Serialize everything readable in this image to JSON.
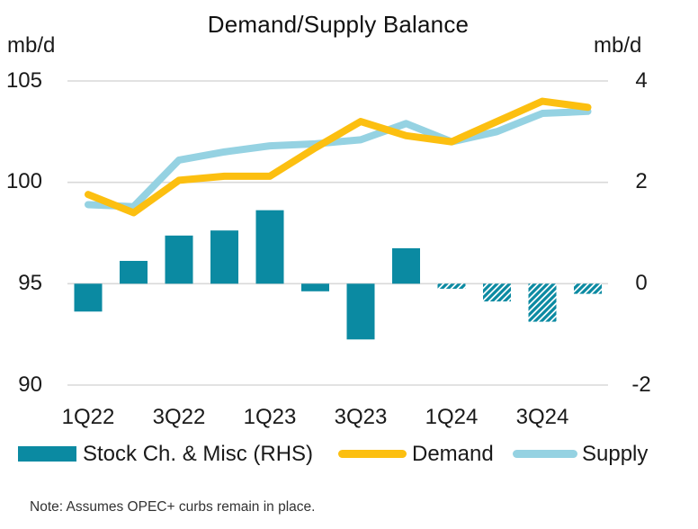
{
  "title": "Demand/Supply Balance",
  "left_axis": {
    "unit": "mb/d",
    "tick_labels": [
      "105",
      "100",
      "95",
      "90"
    ]
  },
  "right_axis": {
    "unit": "mb/d",
    "tick_labels": [
      "4",
      "2",
      "0",
      "-2"
    ]
  },
  "legend": {
    "stock": {
      "label": "Stock Ch. & Misc (RHS)",
      "color": "#0b8aa2"
    },
    "demand": {
      "label": "Demand",
      "color": "#fcbf10"
    },
    "supply": {
      "label": "Supply",
      "color": "#95d2e2"
    }
  },
  "note": "Note: Assumes OPEC+ curbs remain in place.",
  "colors": {
    "gridline": "#d9d9d9",
    "background": "#ffffff",
    "text": "#1a1a1a"
  },
  "chart_data": {
    "type": "combo",
    "x": [
      "1Q22",
      "2Q22",
      "3Q22",
      "4Q22",
      "1Q23",
      "2Q23",
      "3Q23",
      "4Q23",
      "1Q24",
      "2Q24",
      "3Q24",
      "4Q24"
    ],
    "x_tick_labels": [
      "1Q22",
      "3Q22",
      "1Q23",
      "3Q23",
      "1Q24",
      "3Q24"
    ],
    "left_axis_label": "mb/d",
    "right_axis_label": "mb/d",
    "left_ylim": [
      90,
      105
    ],
    "right_ylim": [
      -2,
      4
    ],
    "left_ticks": [
      105,
      100,
      95,
      90
    ],
    "right_ticks": [
      4,
      2,
      0,
      -2
    ],
    "grid": "horizontal",
    "legend_position": "bottom",
    "series": [
      {
        "name": "Stock Ch. & Misc (RHS)",
        "type": "bar",
        "axis": "right",
        "color": "#0b8aa2",
        "hatched_from_index": 8,
        "values": [
          -0.55,
          0.45,
          0.95,
          1.05,
          1.45,
          -0.15,
          -1.1,
          0.7,
          -0.1,
          -0.35,
          -0.75,
          -0.2
        ]
      },
      {
        "name": "Demand",
        "type": "line",
        "axis": "left",
        "color": "#fcbf10",
        "values": [
          99.4,
          98.5,
          100.1,
          100.3,
          100.3,
          101.7,
          103.0,
          102.3,
          102.0,
          103.0,
          104.0,
          103.7
        ]
      },
      {
        "name": "Supply",
        "type": "line",
        "axis": "left",
        "color": "#95d2e2",
        "values": [
          98.9,
          98.8,
          101.1,
          101.5,
          101.8,
          101.9,
          102.1,
          102.9,
          102.0,
          102.5,
          103.4,
          103.5
        ]
      }
    ]
  }
}
